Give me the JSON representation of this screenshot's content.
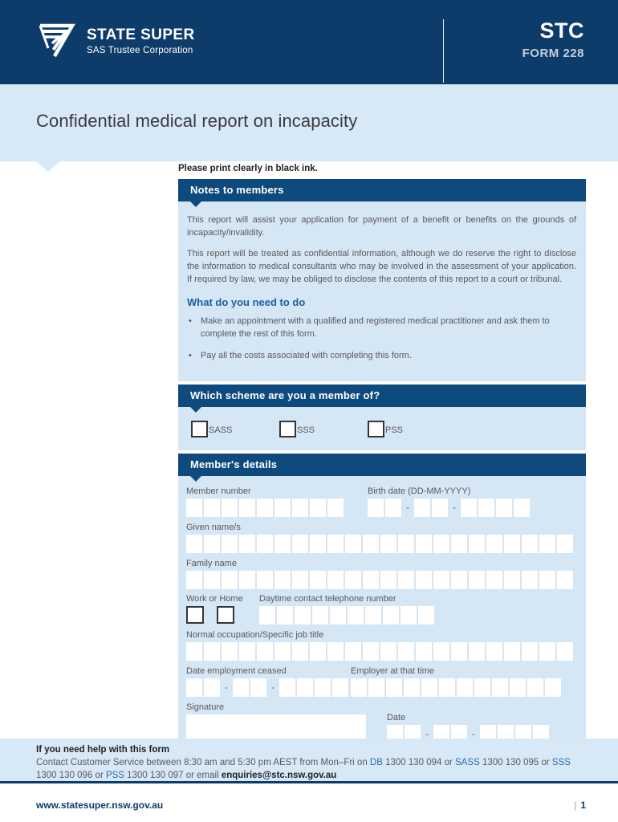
{
  "header": {
    "brand": "STATE SUPER",
    "brand_sub": "SAS Trustee Corporation",
    "doc_code": "STC",
    "form_number": "FORM 228"
  },
  "title": "Confidential medical report on incapacity",
  "instruction": "Please print clearly in black ink.",
  "notes": {
    "heading": "Notes to members",
    "paragraph_1": "This report will assist your application for payment of a benefit or benefits on the grounds of incapacity/invalidity.",
    "paragraph_2": "This report will be treated as confidential information, although we do reserve the right to disclose the information to medical consultants who may be involved in the assessment of your application. If required by law, we may be obliged to disclose the contents of this report to a court or tribunal.",
    "subheading": "What do you need to do",
    "bullets": [
      "Make an appointment with a qualified and registered medical practitioner and ask them to complete the rest of this form.",
      "Pay all the costs associated with completing this form."
    ]
  },
  "scheme": {
    "heading": "Which scheme are you a member of?",
    "options": [
      "SASS",
      "SSS",
      "PSS"
    ]
  },
  "member": {
    "heading": "Member's details",
    "member_number_label": "Member number",
    "member_number_cells": 9,
    "birth_date_label": "Birth date (DD-MM-YYYY)",
    "birth_date_groups": [
      2,
      2,
      4
    ],
    "given_names_label": "Given name/s",
    "given_names_cells": 22,
    "family_name_label": "Family name",
    "family_name_cells": 22,
    "work_or_home_label": "Work or Home",
    "phone_label": "Daytime contact telephone number",
    "phone_cells": 10,
    "occupation_label": "Normal occupation/Specific job title",
    "occupation_cells": 22,
    "employment_ceased_label": "Date employment ceased",
    "employment_ceased_groups": [
      2,
      2,
      4
    ],
    "employer_label": "Employer at that time",
    "employer_cells": 12,
    "signature_label": "Signature",
    "date_label": "Date",
    "date_groups": [
      2,
      2,
      4
    ]
  },
  "help": {
    "heading": "If you need help with this form",
    "text_1": "Contact Customer Service between 8:30 am and 5:30 pm AEST from Mon–Fri on ",
    "scheme_db": "DB",
    "text_2": " 1300 130 094 or ",
    "scheme_sass": "SASS",
    "text_3": " 1300 130 095 or ",
    "scheme_sss": "SSS",
    "text_4": " 1300 130 096 or ",
    "scheme_pss": "PSS",
    "text_5": " 1300 130 097 or email ",
    "email": "enquiries@stc.nsw.gov.au"
  },
  "footer": {
    "website": "www.statesuper.nsw.gov.au",
    "page_sep": "|",
    "page_number": "1"
  },
  "colors": {
    "masthead_navy": "#0d3c6b",
    "section_bar_blue": "#0f4a7e",
    "band_light_blue": "#d7e8f7",
    "body_light_blue": "#d5e6f5",
    "accent_blue": "#2b6cab",
    "text_gray": "#58595b"
  }
}
